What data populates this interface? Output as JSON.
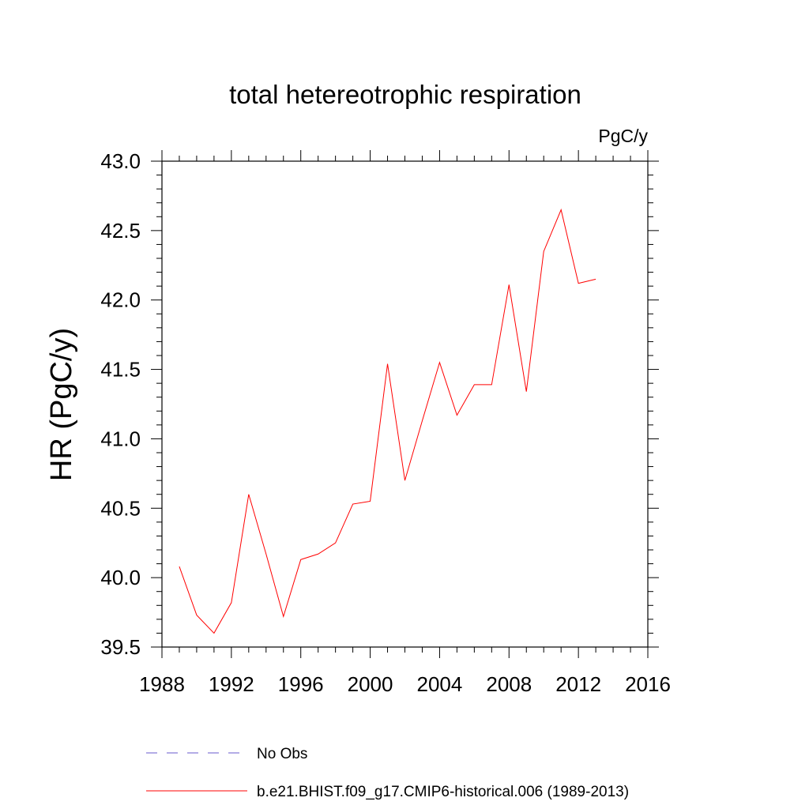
{
  "chart_data": {
    "type": "line",
    "title": "total hetereotrophic respiration",
    "units_label": "PgC/y",
    "ylabel": "HR  (PgC/y)",
    "xlabel": "",
    "xlim": [
      1988,
      2016
    ],
    "ylim": [
      39.5,
      43.0
    ],
    "x_ticks": [
      1988,
      1992,
      1996,
      2000,
      2004,
      2008,
      2012,
      2016
    ],
    "y_ticks": [
      "39.5",
      "40.0",
      "40.5",
      "41.0",
      "41.5",
      "42.0",
      "42.5",
      "43.0"
    ],
    "grid": false,
    "legend_placement": "bottom",
    "series": [
      {
        "name": "b.e21.BHIST.f09_g17.CMIP6-historical.006 (1989-2013)",
        "color": "#ff0000",
        "style": "solid",
        "x": [
          1989,
          1990,
          1991,
          1992,
          1993,
          1994,
          1995,
          1996,
          1997,
          1998,
          1999,
          2000,
          2001,
          2002,
          2003,
          2004,
          2005,
          2006,
          2007,
          2008,
          2009,
          2010,
          2011,
          2012,
          2013
        ],
        "values": [
          40.08,
          39.73,
          39.6,
          39.82,
          40.6,
          40.17,
          39.72,
          40.13,
          40.17,
          40.25,
          40.53,
          40.55,
          41.54,
          40.7,
          41.13,
          41.55,
          41.17,
          41.39,
          41.39,
          42.11,
          41.34,
          42.35,
          42.65,
          42.12,
          42.15
        ]
      }
    ],
    "legend": [
      {
        "label": "No Obs",
        "color": "#6a5acd",
        "style": "dashed"
      },
      {
        "label": "b.e21.BHIST.f09_g17.CMIP6-historical.006 (1989-2013)",
        "color": "#ff0000",
        "style": "solid"
      }
    ]
  }
}
